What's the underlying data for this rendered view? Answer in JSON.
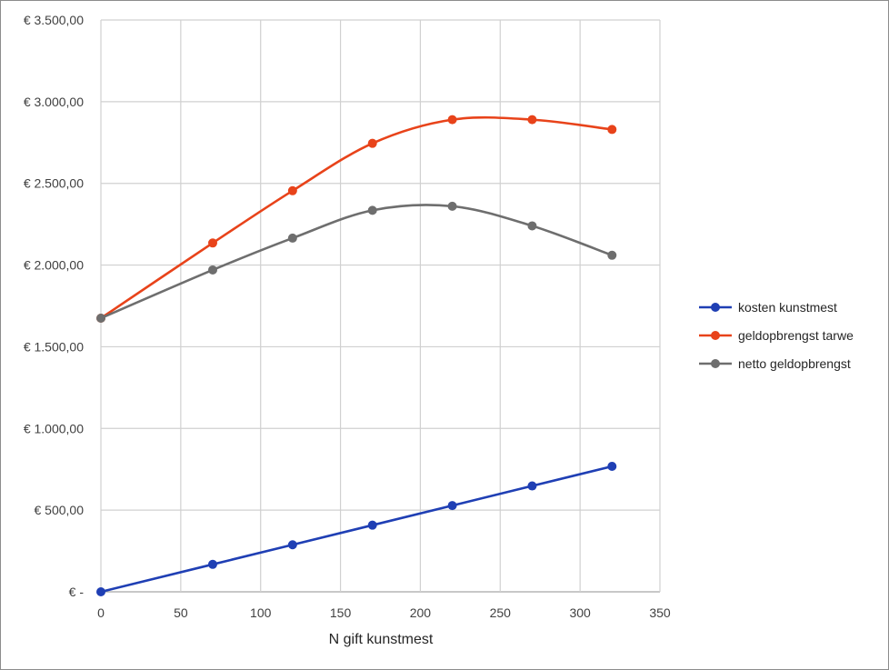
{
  "chart_data": {
    "type": "line",
    "title": "",
    "xlabel": "N gift kunstmest",
    "ylabel": "",
    "xlim": [
      0,
      350
    ],
    "ylim": [
      0,
      3500
    ],
    "x_ticks": [
      0,
      50,
      100,
      150,
      200,
      250,
      300,
      350
    ],
    "x_tick_labels": [
      "0",
      "50",
      "100",
      "150",
      "200",
      "250",
      "300",
      "350"
    ],
    "y_ticks": [
      0,
      500,
      1000,
      1500,
      2000,
      2500,
      3000,
      3500
    ],
    "y_tick_labels": [
      "€ -",
      "€ 500,00",
      "€ 1.000,00",
      "€ 1.500,00",
      "€ 2.000,00",
      "€ 2.500,00",
      "€ 3.000,00",
      "€ 3.500,00"
    ],
    "grid": true,
    "legend_position": "right",
    "x": [
      0,
      70,
      120,
      170,
      220,
      270,
      320
    ],
    "series": [
      {
        "name": "kosten kunstmest",
        "color": "#1f3fb4",
        "smooth": false,
        "values": [
          0,
          168,
          288,
          408,
          528,
          648,
          768
        ]
      },
      {
        "name": "geldopbrengst tarwe",
        "color": "#e8431a",
        "smooth": true,
        "values": [
          1675,
          2135,
          2455,
          2745,
          2890,
          2890,
          2830
        ]
      },
      {
        "name": "netto geldopbrengst",
        "color": "#6e6e6e",
        "smooth": true,
        "values": [
          1675,
          1970,
          2165,
          2335,
          2360,
          2240,
          2060
        ]
      }
    ]
  }
}
